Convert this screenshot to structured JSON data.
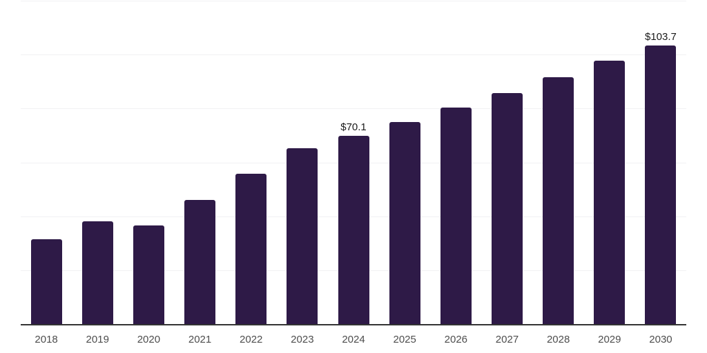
{
  "chart_data": {
    "type": "bar",
    "title": "",
    "xlabel": "",
    "ylabel": "",
    "categories": [
      "2018",
      "2019",
      "2020",
      "2021",
      "2022",
      "2023",
      "2024",
      "2025",
      "2026",
      "2027",
      "2028",
      "2029",
      "2030"
    ],
    "values": [
      31.8,
      38.4,
      36.9,
      46.4,
      56.1,
      65.6,
      70.1,
      75.2,
      80.5,
      86.1,
      91.9,
      98.0,
      103.7
    ],
    "bar_labels": [
      "",
      "",
      "",
      "",
      "",
      "",
      "$70.1",
      "",
      "",
      "",
      "",
      "",
      "$103.7"
    ],
    "ylim": [
      0,
      120
    ],
    "grid_step": 20,
    "grid": "horizontal",
    "legend": "none",
    "y_tick_labels_shown": false,
    "colors": {
      "bar": "#2e1a47",
      "gridline": "#f1f1f3",
      "axis_line": "#333333",
      "bar_label_text": "#1a1a1a",
      "x_tick_text": "#4d4d4d",
      "background": "#ffffff"
    }
  }
}
